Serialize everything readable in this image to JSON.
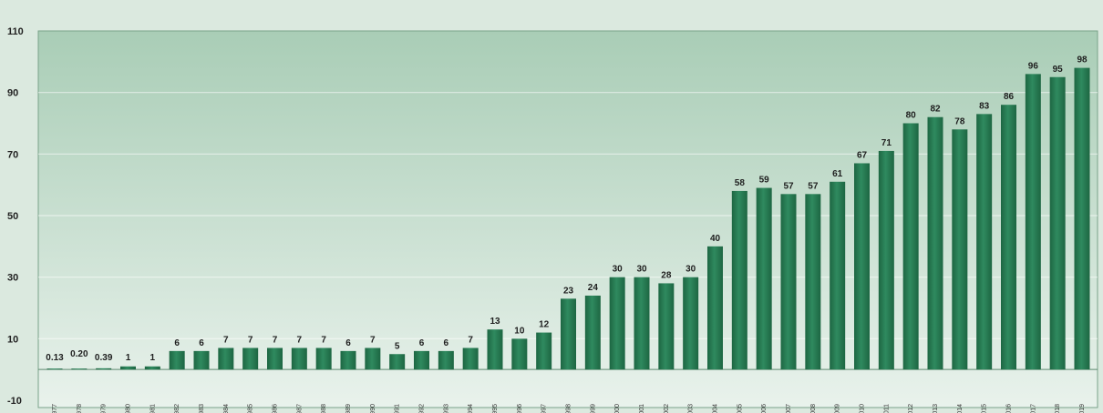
{
  "chart_data": {
    "type": "bar",
    "categories": [
      "1977",
      "1978",
      "1979",
      "1980",
      "1981",
      "1982",
      "1983",
      "1984",
      "1985",
      "1986",
      "1987",
      "1988",
      "1989",
      "1990",
      "1991",
      "1992",
      "1993",
      "1994",
      "1995",
      "1996",
      "1997",
      "1998",
      "1999",
      "2000",
      "2001",
      "2002",
      "2003",
      "2004",
      "2005",
      "2006",
      "2007",
      "2008",
      "2009",
      "2010",
      "2011",
      "2012",
      "2013",
      "2014",
      "2015",
      "2016",
      "2017",
      "2018",
      "2019"
    ],
    "values": [
      0.13,
      0.2,
      0.39,
      1,
      1,
      6,
      6,
      7,
      7,
      7,
      7,
      7,
      6,
      7,
      5,
      6,
      6,
      7,
      13,
      10,
      12,
      23,
      24,
      30,
      30,
      28,
      30,
      40,
      58,
      59,
      57,
      57,
      61,
      67,
      71,
      80,
      82,
      78,
      83,
      86,
      96,
      95,
      98
    ],
    "data_labels": [
      "0.13",
      "0.20",
      "0.39",
      "1",
      "1",
      "6",
      "6",
      "7",
      "7",
      "7",
      "7",
      "7",
      "6",
      "7",
      "5",
      "6",
      "6",
      "7",
      "13",
      "10",
      "12",
      "23",
      "24",
      "30",
      "30",
      "28",
      "30",
      "40",
      "58",
      "59",
      "57",
      "57",
      "61",
      "67",
      "71",
      "80",
      "82",
      "78",
      "83",
      "86",
      "96",
      "95",
      "98"
    ],
    "y_ticks": [
      "110",
      "90",
      "70",
      "50",
      "30",
      "10",
      "-10"
    ],
    "title": "",
    "xlabel": "",
    "ylabel": "",
    "ylim": [
      -10,
      110
    ],
    "grid": true,
    "colors": {
      "bar": "#2f8a5f",
      "bar_dark": "#1d6642",
      "plot_top": "#a9cdb6",
      "plot_bottom": "#e9f2ec",
      "page": "#dbe9df",
      "grid": "#ffffff"
    }
  }
}
